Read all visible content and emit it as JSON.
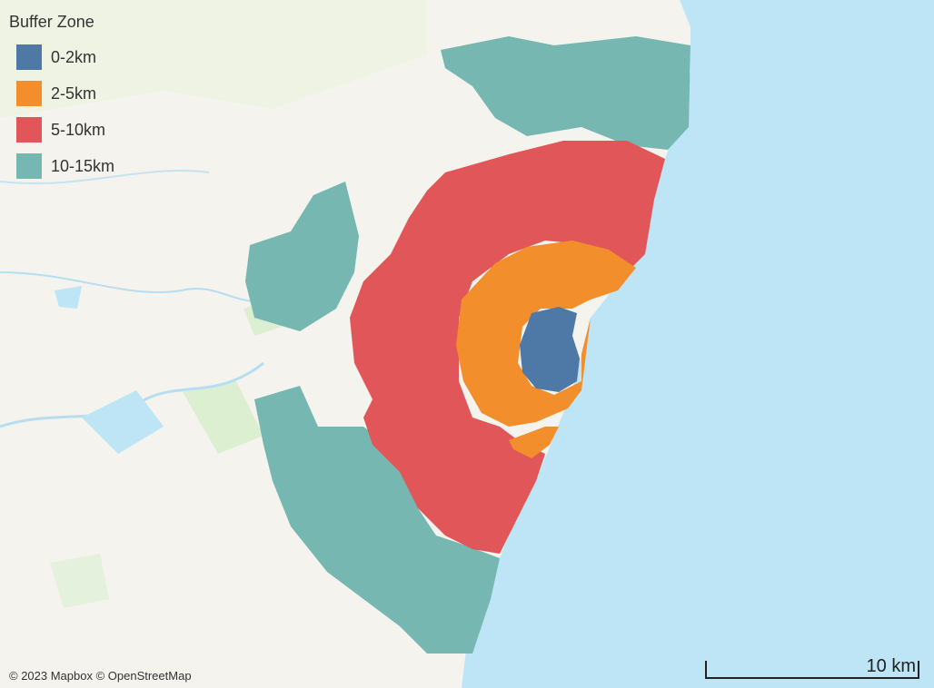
{
  "legend": {
    "title": "Buffer Zone",
    "items": [
      {
        "label": "0-2km",
        "color": "#4e79a7"
      },
      {
        "label": "2-5km",
        "color": "#f28e2b"
      },
      {
        "label": "5-10km",
        "color": "#e15759"
      },
      {
        "label": "10-15km",
        "color": "#76b7b2"
      }
    ]
  },
  "attribution": "© 2023 Mapbox © OpenStreetMap",
  "scale_bar": {
    "label": "10 km"
  },
  "colors": {
    "land": "#f4f3ee",
    "water": "#bde5f5",
    "park": "#dff0d8"
  }
}
